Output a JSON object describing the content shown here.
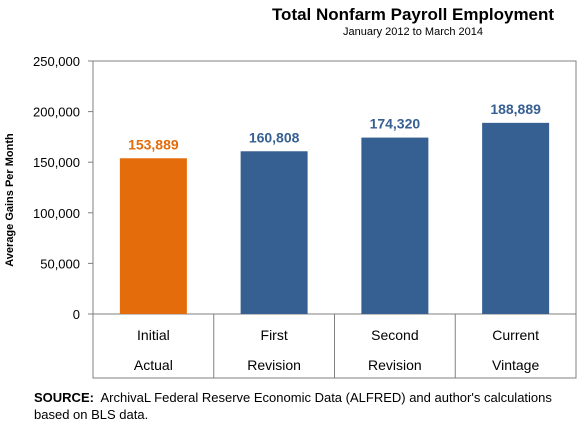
{
  "chart_data": {
    "type": "bar",
    "title": "Total Nonfarm Payroll Employment",
    "subtitle": "January 2012 to March 2014",
    "ylabel": "Average Gains Per Month",
    "ylim": [
      0,
      250000
    ],
    "yticks": [
      "0",
      "50,000",
      "100,000",
      "150,000",
      "200,000",
      "250,000"
    ],
    "ytick_values": [
      0,
      50000,
      100000,
      150000,
      200000,
      250000
    ],
    "categories": [
      {
        "line1": "Initial",
        "line2": "Actual"
      },
      {
        "line1": "First",
        "line2": "Revision"
      },
      {
        "line1": "Second",
        "line2": "Revision"
      },
      {
        "line1": "Current",
        "line2": "Vintage"
      }
    ],
    "values": [
      153889,
      160808,
      174320,
      188889
    ],
    "value_labels": [
      "153,889",
      "160,808",
      "174,320",
      "188,889"
    ],
    "bar_colors": [
      "#E46C0A",
      "#376092",
      "#376092",
      "#376092"
    ],
    "label_colors": [
      "#E46C0A",
      "#376092",
      "#376092",
      "#376092"
    ],
    "grid": false
  },
  "source": {
    "prefix": "SOURCE:",
    "text": "ArchivaL Federal Reserve Economic Data (ALFRED) and author's calculations based on BLS data."
  }
}
